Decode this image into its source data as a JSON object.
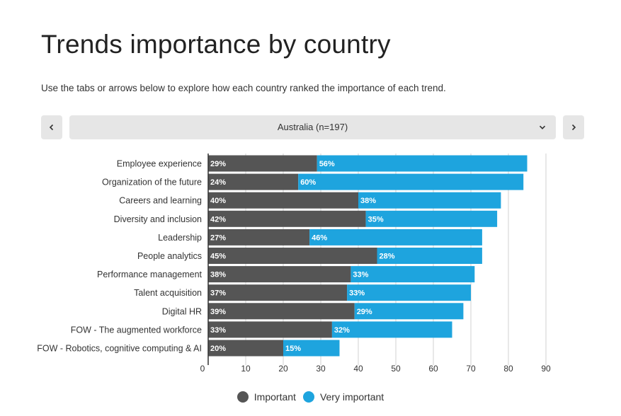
{
  "header": {
    "title": "Trends importance by country",
    "subtitle": "Use the tabs or arrows below to explore how each country ranked the importance of each trend."
  },
  "selector": {
    "selected_country": "Australia (n=197)"
  },
  "icons": {
    "prev": "chevron-left-icon",
    "next": "chevron-right-icon",
    "dropdown": "chevron-down-icon"
  },
  "colors": {
    "important": "#555555",
    "very_important": "#1ea4de",
    "control_bg": "#e6e6e6"
  },
  "chart_data": {
    "type": "bar",
    "orientation": "horizontal",
    "stacked": true,
    "categories": [
      "Employee experience",
      "Organization of the future",
      "Careers and learning",
      "Diversity and inclusion",
      "Leadership",
      "People analytics",
      "Performance management",
      "Talent acquisition",
      "Digital HR",
      "FOW - The augmented workforce",
      "FOW - Robotics, cognitive computing & AI"
    ],
    "series": [
      {
        "name": "Important",
        "color": "#555555",
        "values": [
          29,
          24,
          40,
          42,
          27,
          45,
          38,
          37,
          39,
          33,
          20
        ],
        "labels": [
          "29%",
          "24%",
          "40%",
          "42%",
          "27%",
          "45%",
          "38%",
          "37%",
          "39%",
          "33%",
          "20%"
        ]
      },
      {
        "name": "Very important",
        "color": "#1ea4de",
        "values": [
          56,
          60,
          38,
          35,
          46,
          28,
          33,
          33,
          29,
          32,
          15
        ],
        "labels": [
          "56%",
          "60%",
          "38%",
          "35%",
          "46%",
          "28%",
          "33%",
          "33%",
          "29%",
          "32%",
          "15%"
        ]
      }
    ],
    "xlim": [
      0,
      90
    ],
    "xticks": [
      0,
      10,
      20,
      30,
      40,
      50,
      60,
      70,
      80,
      90
    ],
    "xtick_labels": [
      "0",
      "10",
      "20",
      "30",
      "40",
      "50",
      "60",
      "70",
      "80",
      "90"
    ],
    "grid": true,
    "legend_position": "bottom-center"
  }
}
